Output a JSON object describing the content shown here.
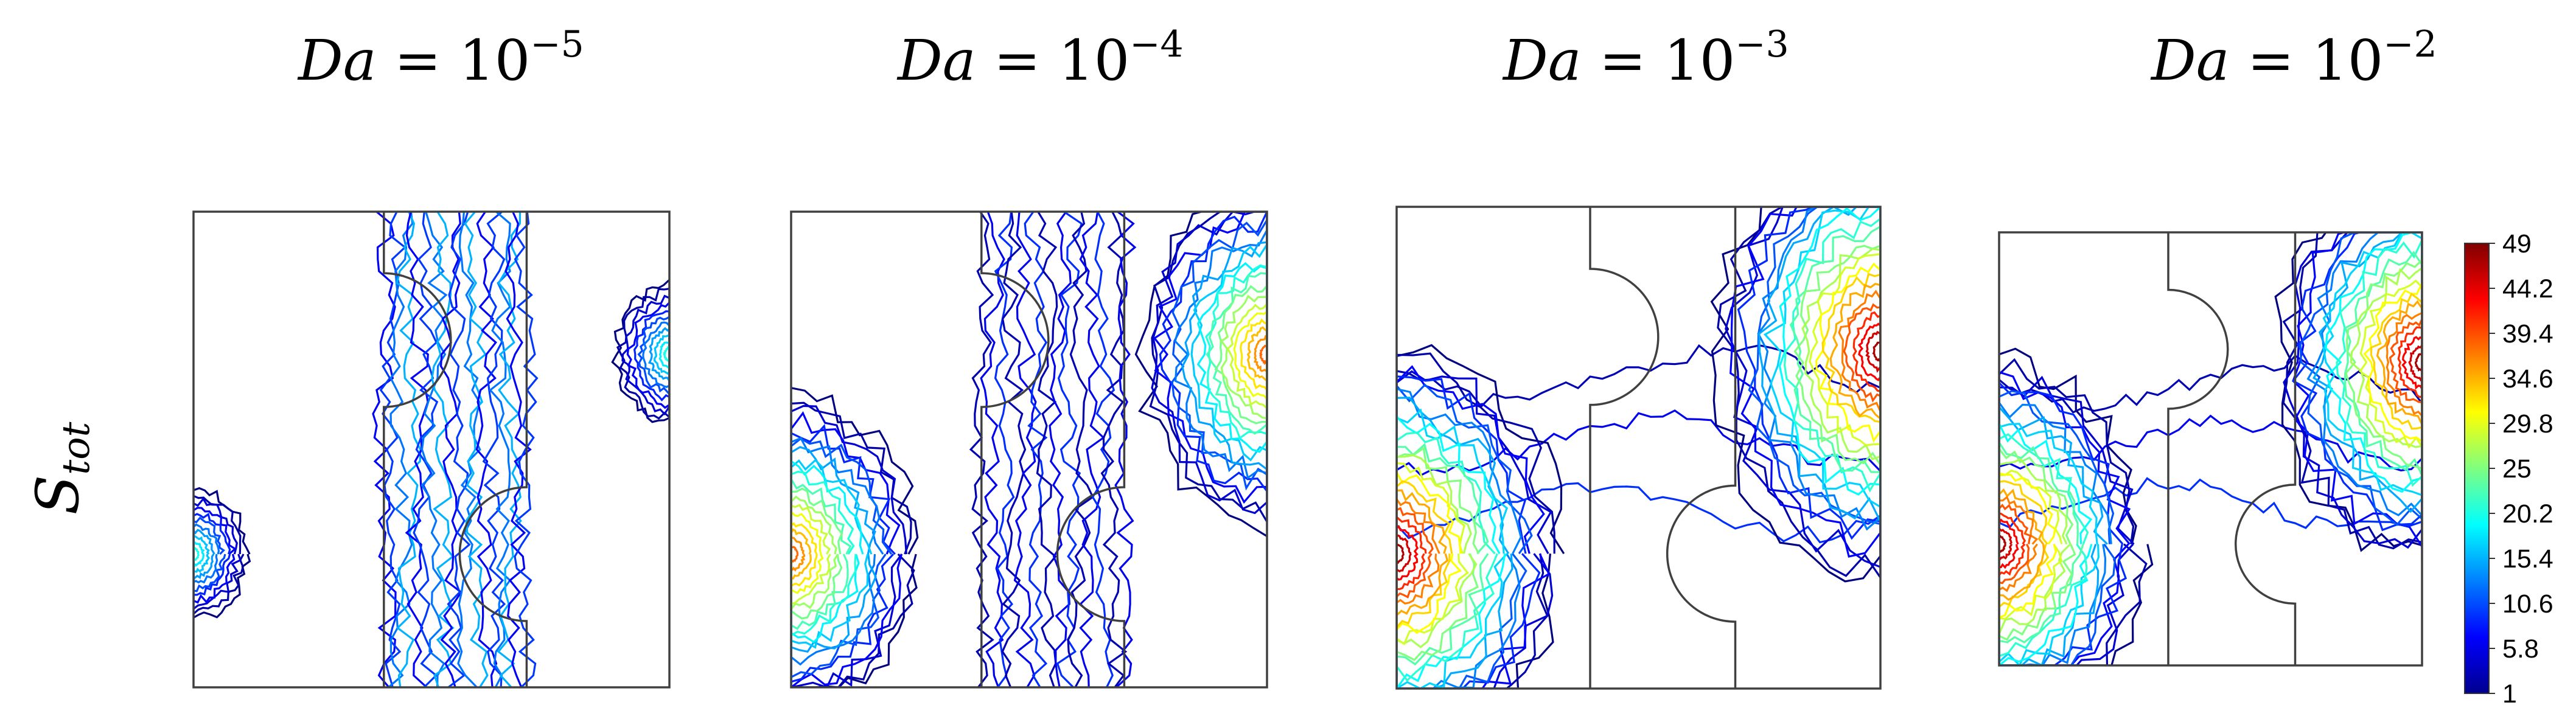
{
  "chart_data": {
    "type": "contour",
    "row_label": {
      "base": "S",
      "sub": "tot"
    },
    "panels": [
      {
        "title_var": "Da",
        "title_eq": "= 10",
        "title_exp": "−5",
        "da": 1e-05
      },
      {
        "title_var": "Da",
        "title_eq": "= 10",
        "title_exp": "−4",
        "da": 0.0001
      },
      {
        "title_var": "Da",
        "title_eq": "= 10",
        "title_exp": "−3",
        "da": 0.001
      },
      {
        "title_var": "Da",
        "title_eq": "= 10",
        "title_exp": "−2",
        "da": 0.01
      }
    ],
    "colorbar": {
      "min": 1,
      "max": 49,
      "ticks": [
        "49",
        "44.2",
        "39.4",
        "34.6",
        "29.8",
        "25",
        "20.2",
        "15.4",
        "10.6",
        "5.8",
        "1"
      ],
      "colormap": "jet"
    },
    "colors": {
      "contour_low": "#1a1aa0",
      "contour_mid": "#1e90ff",
      "contour_high": "#ff2200",
      "frame": "#404040"
    }
  }
}
